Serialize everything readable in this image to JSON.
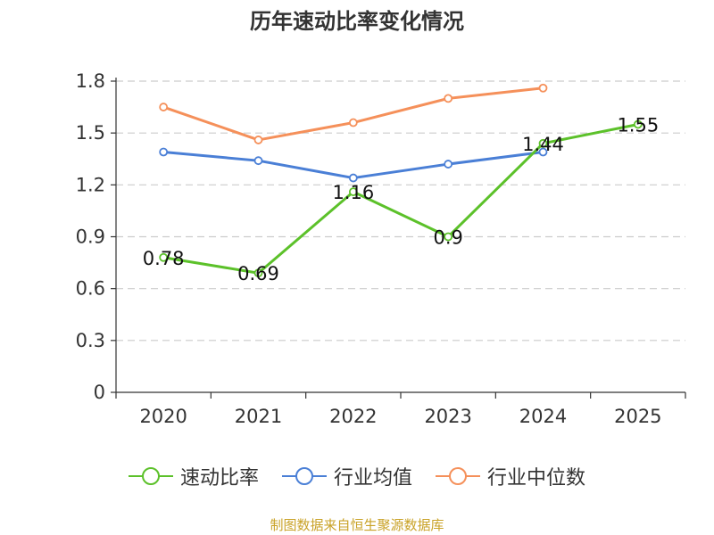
{
  "chart_data": {
    "type": "line",
    "title": "历年速动比率变化情况",
    "categories": [
      "2020",
      "2021",
      "2022",
      "2023",
      "2024",
      "2025"
    ],
    "y_ticks": [
      "0",
      "0.3",
      "0.6",
      "0.9",
      "1.2",
      "1.5",
      "1.8"
    ],
    "ylim": [
      0,
      1.8
    ],
    "grid": true,
    "legend_position": "bottom",
    "series": [
      {
        "name": "速动比率",
        "color": "#5cc12a",
        "values": [
          0.78,
          0.69,
          1.16,
          0.9,
          1.44,
          1.55
        ],
        "labels": [
          "0.78",
          "0.69",
          "1.16",
          "0.9",
          "1.44",
          "1.55"
        ]
      },
      {
        "name": "行业均值",
        "color": "#4a7fd6",
        "values": [
          1.39,
          1.34,
          1.24,
          1.32,
          1.39,
          null
        ]
      },
      {
        "name": "行业中位数",
        "color": "#f5905a",
        "values": [
          1.65,
          1.46,
          1.56,
          1.7,
          1.76,
          null
        ]
      }
    ]
  },
  "source": "制图数据来自恒生聚源数据库"
}
